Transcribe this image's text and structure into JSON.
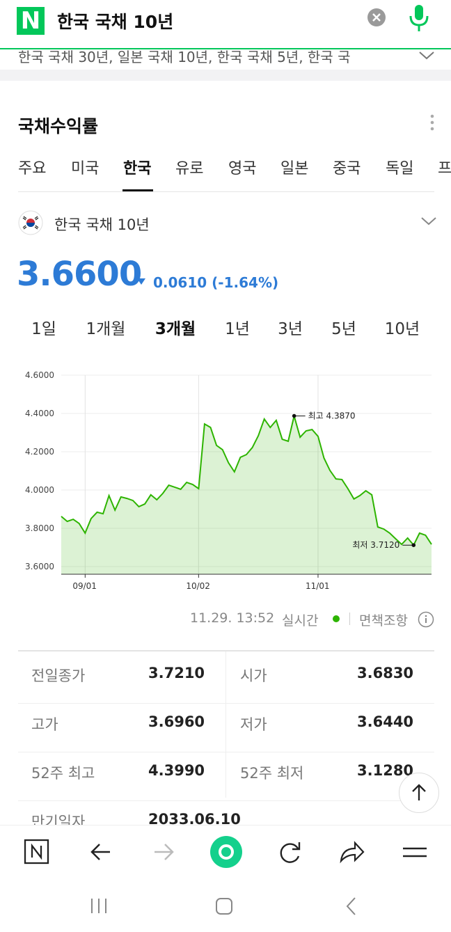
{
  "search": {
    "query": "한국 국채 10년",
    "suggestions": "한국 국채 30년, 일본 국채 10년, 한국 국채 5년, 한국 국"
  },
  "section_title": "국채수익률",
  "tabs": [
    "주요",
    "미국",
    "한국",
    "유로",
    "영국",
    "일본",
    "중국",
    "독일",
    "프"
  ],
  "instrument": "한국 국채 10년",
  "quote": {
    "price": "3.6600",
    "change": "0.0610",
    "change_percent": "(-1.64%)"
  },
  "periods": [
    "1일",
    "1개월",
    "3개월",
    "1년",
    "3년",
    "5년",
    "10년"
  ],
  "chart_data": {
    "type": "line",
    "color": "#2db400",
    "grid": true,
    "categories": [
      null,
      null,
      null,
      null,
      "09/01",
      null,
      null,
      null,
      null,
      null,
      null,
      null,
      null,
      null,
      null,
      null,
      null,
      null,
      null,
      null,
      null,
      null,
      null,
      "10/02",
      null,
      null,
      null,
      null,
      null,
      null,
      null,
      null,
      null,
      null,
      null,
      null,
      null,
      null,
      null,
      null,
      null,
      null,
      null,
      "11/01",
      null,
      null,
      null,
      null,
      null,
      null,
      null,
      null,
      null,
      null,
      null,
      null,
      null,
      null,
      null,
      null,
      null,
      null,
      null
    ],
    "values": [
      3.862,
      3.836,
      3.847,
      3.825,
      3.775,
      3.851,
      3.884,
      3.876,
      3.971,
      3.895,
      3.964,
      3.956,
      3.945,
      3.913,
      3.927,
      3.975,
      3.949,
      3.982,
      4.025,
      4.015,
      4.004,
      4.04,
      4.029,
      4.007,
      4.345,
      4.327,
      4.233,
      4.211,
      4.142,
      4.095,
      4.171,
      4.185,
      4.222,
      4.284,
      4.371,
      4.327,
      4.364,
      4.265,
      4.255,
      4.387,
      4.276,
      4.309,
      4.316,
      4.28,
      4.167,
      4.102,
      4.058,
      4.055,
      4.007,
      3.953,
      3.971,
      3.996,
      3.975,
      3.807,
      3.796,
      3.775,
      3.745,
      3.716,
      3.749,
      3.712,
      3.775,
      3.764,
      3.716
    ],
    "ylim": [
      3.56,
      4.6
    ],
    "yticks": [
      {
        "value": 3.6,
        "label": "3.6000"
      },
      {
        "value": 3.8,
        "label": "3.8000"
      },
      {
        "value": 4.0,
        "label": "4.0000"
      },
      {
        "value": 4.2,
        "label": "4.2000"
      },
      {
        "value": 4.4,
        "label": "4.4000"
      },
      {
        "value": 4.6,
        "label": "4.6000"
      }
    ],
    "annotations": {
      "high": "최고 4.3870",
      "low": "최저 3.7120"
    }
  },
  "status": {
    "timestamp": "11.29. 13:52",
    "realtime": "실시간",
    "disclaimer": "면책조항"
  },
  "stats": [
    [
      "전일종가",
      "3.7210",
      "시가",
      "3.6830"
    ],
    [
      "고가",
      "3.6960",
      "저가",
      "3.6440"
    ],
    [
      "52주 최고",
      "4.3990",
      "52주 최저",
      "3.1280"
    ],
    [
      "만기일자",
      "2033.06.10"
    ]
  ]
}
